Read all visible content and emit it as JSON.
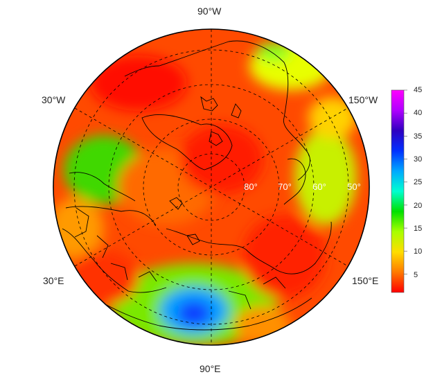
{
  "map": {
    "projection": "north-polar-stereographic",
    "longitude_labels": [
      {
        "id": "lon-90w",
        "text": "90°W"
      },
      {
        "id": "lon-30w",
        "text": "30°W"
      },
      {
        "id": "lon-150w",
        "text": "150°W"
      },
      {
        "id": "lon-30e",
        "text": "30°E"
      },
      {
        "id": "lon-150e",
        "text": "150°E"
      },
      {
        "id": "lon-90e",
        "text": "90°E"
      }
    ],
    "latitude_labels": [
      "80°",
      "70°",
      "60°",
      "50°"
    ],
    "field_colors": {
      "background": "#ff4a00",
      "coast": "#000000"
    }
  },
  "colorbar": {
    "ticks": [
      "45",
      "40",
      "35",
      "30",
      "25",
      "20",
      "15",
      "10",
      "5"
    ],
    "range": [
      1,
      45
    ],
    "stops": [
      "#ff0000",
      "#ff7a00",
      "#ffdd00",
      "#a8ff00",
      "#00e000",
      "#00ffd0",
      "#00a8ff",
      "#0030ff",
      "#3000c0",
      "#b000ff",
      "#ff00ff"
    ]
  }
}
